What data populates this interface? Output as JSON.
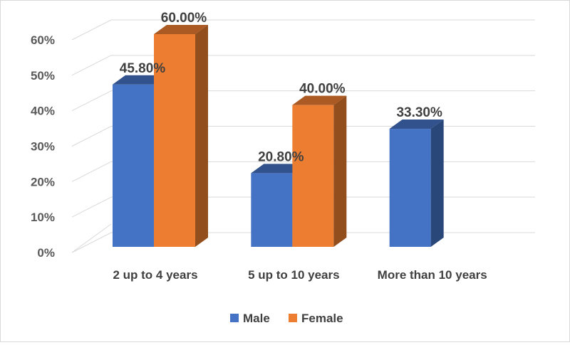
{
  "chart_data": {
    "type": "bar",
    "categories": [
      "2 up to 4 years",
      "5 up to 10 years",
      "More than 10 years"
    ],
    "series": [
      {
        "name": "Male",
        "values": [
          45.8,
          20.8,
          33.3
        ],
        "labels": [
          "45.80%",
          "20.80%",
          "33.30%"
        ],
        "color": "#4472C4"
      },
      {
        "name": "Female",
        "values": [
          60.0,
          40.0,
          null
        ],
        "labels": [
          "60.00%",
          "40.00%",
          ""
        ],
        "color": "#ED7D31"
      }
    ],
    "ylim": [
      0,
      60
    ],
    "yticks": [
      "0%",
      "10%",
      "20%",
      "30%",
      "40%",
      "50%",
      "60%"
    ],
    "grid": true,
    "legend_position": "bottom",
    "style": "3d-clustered-column"
  }
}
